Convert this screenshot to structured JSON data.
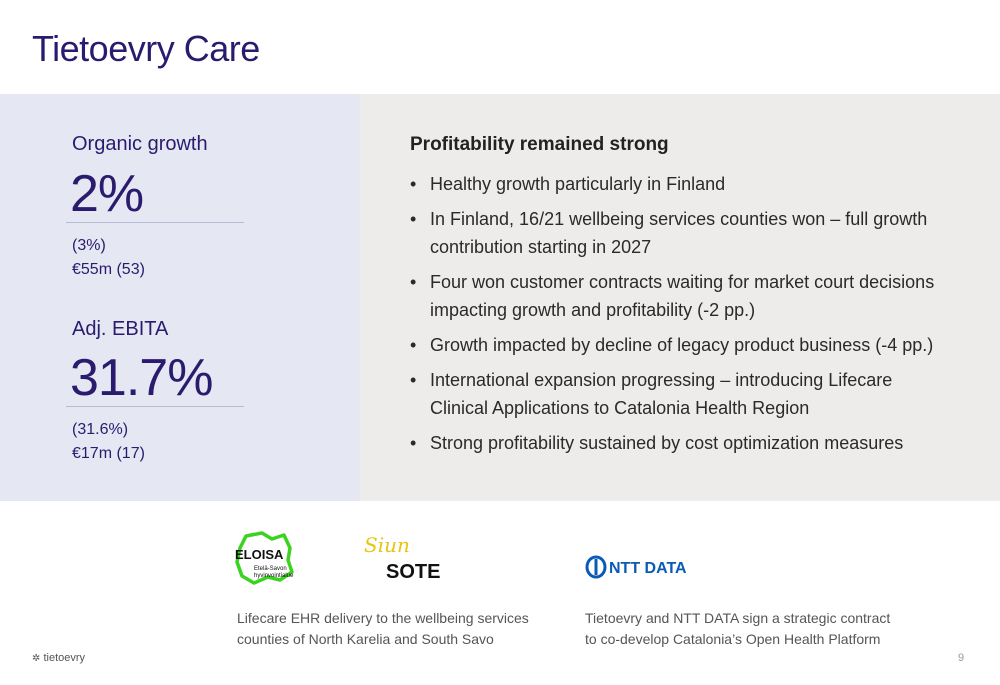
{
  "title": "Tietoevry Care",
  "kpis": [
    {
      "label": "Organic growth",
      "value": "2%",
      "sub1": "(3%)",
      "sub2": "€55m (53)"
    },
    {
      "label": "Adj. EBITA",
      "value": "31.7%",
      "sub1": "(31.6%)",
      "sub2": "€17m (17)"
    }
  ],
  "highlights": {
    "heading": "Profitability remained strong",
    "bullets": [
      "Healthy growth particularly in Finland",
      "In Finland, 16/21 wellbeing services counties won – full growth contribution starting in 2027",
      "Four won customer contracts waiting for market court decisions impacting growth and profitability (-2 pp.)",
      "Growth impacted by decline of legacy product business (-4 pp.)",
      "International expansion progressing – introducing Lifecare Clinical Applications to Catalonia Health Region",
      "Strong profitability sustained by cost optimization measures"
    ]
  },
  "logos": {
    "eloisa": {
      "name": "ELOISA",
      "sub1": "Etelä-Savon",
      "sub2": "hyvinvointialue"
    },
    "sote": {
      "script": "Siun",
      "name": "SOTE"
    },
    "ntt": {
      "name": "NTT DATA"
    }
  },
  "captions": {
    "left": [
      "Lifecare EHR delivery to the wellbeing services",
      "counties of North Karelia and South Savo"
    ],
    "right": [
      "Tietoevry and NTT DATA sign a strategic contract",
      "to co-develop Catalonia’s Open Health Platform"
    ]
  },
  "footer": {
    "brand": "tietoevry",
    "page": "9"
  },
  "colors": {
    "brand_purple": "#2b1b6e",
    "eloisa_green": "#3bd321",
    "sote_yellow": "#e9c413",
    "ntt_blue": "#0a5bb5"
  }
}
